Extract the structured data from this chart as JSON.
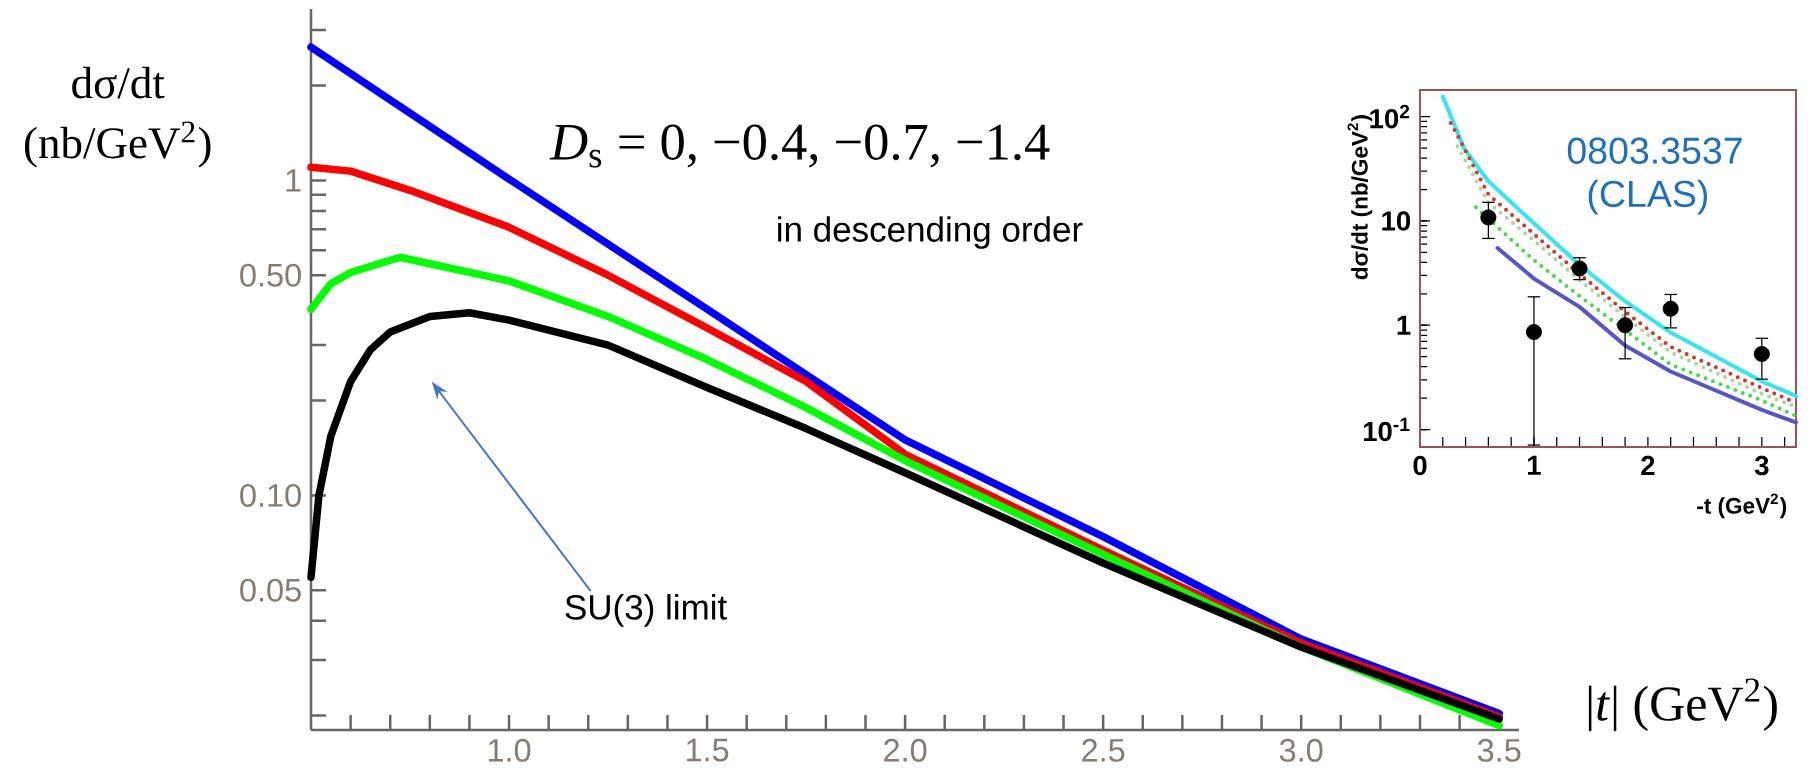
{
  "chart_data": [
    {
      "type": "line",
      "xlabel": "|*t*| (GeV$^{2}$)",
      "ylabel": "dσ/dt (nb/GeV$^{2}$)",
      "log": true,
      "xlim": [
        0.5,
        3.55
      ],
      "ylim": [
        0.018,
        3.5
      ],
      "xticks": [
        {
          "value": 0.6,
          "label": null
        },
        {
          "value": 0.7,
          "label": null
        },
        {
          "value": 0.8,
          "label": null
        },
        {
          "value": 0.9,
          "label": null
        },
        {
          "value": 1.0,
          "label": "1.0"
        },
        {
          "value": 1.1,
          "label": null
        },
        {
          "value": 1.2,
          "label": null
        },
        {
          "value": 1.3,
          "label": null
        },
        {
          "value": 1.4,
          "label": null
        },
        {
          "value": 1.5,
          "label": "1.5"
        },
        {
          "value": 1.6,
          "label": null
        },
        {
          "value": 1.7,
          "label": null
        },
        {
          "value": 1.8,
          "label": null
        },
        {
          "value": 1.9,
          "label": null
        },
        {
          "value": 2.0,
          "label": "2.0"
        },
        {
          "value": 2.1,
          "label": null
        },
        {
          "value": 2.2,
          "label": null
        },
        {
          "value": 2.3,
          "label": null
        },
        {
          "value": 2.4,
          "label": null
        },
        {
          "value": 2.5,
          "label": "2.5"
        },
        {
          "value": 2.6,
          "label": null
        },
        {
          "value": 2.7,
          "label": null
        },
        {
          "value": 2.8,
          "label": null
        },
        {
          "value": 2.9,
          "label": null
        },
        {
          "value": 3.0,
          "label": "3.0"
        },
        {
          "value": 3.1,
          "label": null
        },
        {
          "value": 3.2,
          "label": null
        },
        {
          "value": 3.3,
          "label": null
        },
        {
          "value": 3.4,
          "label": null
        },
        {
          "value": 3.5,
          "label": "3.5"
        }
      ],
      "yticks": [
        {
          "value": 0.02,
          "label": null
        },
        {
          "value": 0.03,
          "label": null
        },
        {
          "value": 0.04,
          "label": null
        },
        {
          "value": 0.05,
          "label": "0.05"
        },
        {
          "value": 0.1,
          "label": "0.10"
        },
        {
          "value": 0.2,
          "label": null
        },
        {
          "value": 0.3,
          "label": null
        },
        {
          "value": 0.5,
          "label": "0.50"
        },
        {
          "value": 0.6,
          "label": null
        },
        {
          "value": 0.7,
          "label": null
        },
        {
          "value": 0.8,
          "label": null
        },
        {
          "value": 0.9,
          "label": null
        },
        1,
        {
          "value": 2,
          "label": null
        },
        {
          "value": 3,
          "label": null
        }
      ],
      "series": [
        {
          "color": "#0000ff",
          "x": [
            0.5,
            1.0,
            1.5,
            2.0,
            2.5,
            3.0,
            3.5
          ],
          "values": [
            2.65,
            1.01,
            0.39,
            0.15,
            0.074,
            0.035,
            0.0203
          ]
        },
        {
          "color": "#ff0000",
          "x": [
            0.5,
            0.6,
            0.75,
            1.0,
            1.25,
            1.5,
            1.75,
            2.0,
            2.5,
            3.0,
            3.5
          ],
          "values": [
            1.1,
            1.07,
            0.93,
            0.71,
            0.5,
            0.34,
            0.23,
            0.135,
            0.067,
            0.034,
            0.0198
          ]
        },
        {
          "color": "#00ff00",
          "x": [
            0.5,
            0.55,
            0.6,
            0.725,
            1.0,
            1.25,
            1.5,
            1.75,
            2.0,
            2.5,
            3.0,
            3.5
          ],
          "values": [
            0.39,
            0.47,
            0.51,
            0.57,
            0.48,
            0.37,
            0.27,
            0.19,
            0.129,
            0.065,
            0.033,
            0.0186
          ]
        },
        {
          "color": "#000000",
          "x": [
            0.5,
            0.52,
            0.55,
            0.6,
            0.65,
            0.7,
            0.8,
            0.9,
            1.0,
            1.25,
            1.5,
            1.75,
            2.0,
            2.5,
            3.0,
            3.5
          ],
          "values": [
            0.055,
            0.1,
            0.154,
            0.23,
            0.29,
            0.33,
            0.37,
            0.38,
            0.36,
            0.3,
            0.22,
            0.163,
            0.118,
            0.061,
            0.033,
            0.0195
          ]
        }
      ],
      "annotations": [
        "*D*$_{s}$ = 0, −0.4, −0.7, −1.4",
        "in descending order",
        "SU(3) limit"
      ]
    },
    {
      "type": "line",
      "xlabel": "-t (GeV$^{2}$)",
      "ylabel": "dσ/dt (nb/GeV$^{2}$)",
      "log": true,
      "xlim": [
        0,
        3.3
      ],
      "ylim": [
        0.068,
        180
      ],
      "xticks": [
        0,
        {
          "value": 0.2,
          "label": null
        },
        {
          "value": 0.4,
          "label": null
        },
        {
          "value": 0.6,
          "label": null
        },
        {
          "value": 0.8,
          "label": null
        },
        1,
        {
          "value": 1.2,
          "label": null
        },
        {
          "value": 1.4,
          "label": null
        },
        {
          "value": 1.6,
          "label": null
        },
        {
          "value": 1.8,
          "label": null
        },
        2,
        {
          "value": 2.2,
          "label": null
        },
        {
          "value": 2.4,
          "label": null
        },
        {
          "value": 2.6,
          "label": null
        },
        {
          "value": 2.8,
          "label": null
        },
        3,
        {
          "value": 3.2,
          "label": null
        }
      ],
      "yticks": [
        {
          "value": 0.1,
          "label": "10$^{-1}$"
        },
        1,
        10,
        {
          "value": 100,
          "label": "10$^{2}$"
        }
      ],
      "series": [
        {
          "color": "#33e6f0",
          "line_style": "solid",
          "x": [
            0.2,
            0.39,
            0.6,
            1.0,
            1.4,
            1.8,
            2.2,
            3.0,
            3.3
          ],
          "values": [
            156,
            49,
            24,
            9.5,
            3.8,
            1.7,
            0.85,
            0.29,
            0.21
          ]
        },
        {
          "color": "#e0302a",
          "line_style": "dotted",
          "x": [
            0.27,
            0.6,
            1.0,
            1.4,
            1.8,
            2.2,
            3.0,
            3.3
          ],
          "values": [
            87,
            18,
            7.5,
            3.1,
            1.35,
            0.62,
            0.25,
            0.18
          ]
        },
        {
          "color": "#a8d8a0",
          "line_style": "dotted",
          "x": [
            0.33,
            0.6,
            1.0,
            1.4,
            1.8,
            2.2,
            3.0,
            3.3
          ],
          "values": [
            52,
            15,
            6.5,
            2.7,
            1.2,
            0.55,
            0.22,
            0.165
          ]
        },
        {
          "color": "#44dd44",
          "line_style": "dotted",
          "x": [
            0.49,
            1.0,
            1.4,
            1.8,
            2.2,
            3.0,
            3.3
          ],
          "values": [
            13.5,
            4.2,
            1.9,
            0.9,
            0.42,
            0.19,
            0.135
          ]
        },
        {
          "color": "#5555cc",
          "line_style": "solid",
          "x": [
            0.68,
            1.0,
            1.4,
            1.8,
            2.2,
            3.0,
            3.3
          ],
          "values": [
            5.5,
            2.8,
            1.5,
            0.64,
            0.36,
            0.154,
            0.117
          ]
        },
        {
          "type": "scatter",
          "marker": "circle",
          "color": "#000000",
          "x": [
            0.6,
            1.0,
            1.4,
            1.8,
            2.2,
            3.0
          ],
          "values": [
            10.8,
            0.86,
            3.5,
            1.0,
            1.44,
            0.53
          ],
          "errors": [
            [
              6.7,
              15.3
            ],
            [
              0.07,
              1.9
            ],
            [
              2.7,
              4.5
            ],
            [
              0.47,
              1.5
            ],
            [
              0.93,
              2.0
            ],
            [
              0.3,
              0.76
            ]
          ]
        }
      ],
      "annotations": [
        "0803.3537",
        "(CLAS)"
      ]
    }
  ]
}
